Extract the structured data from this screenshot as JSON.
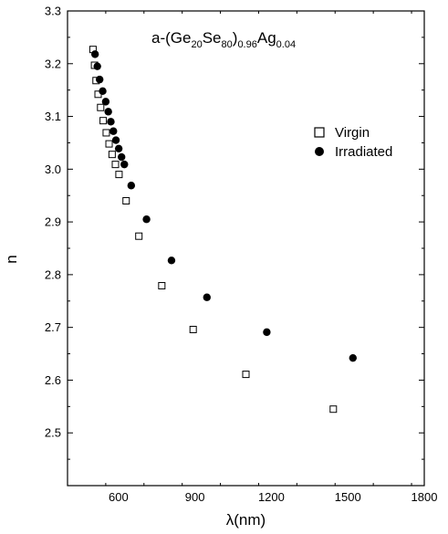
{
  "chart_data": {
    "type": "scatter",
    "xlabel": "λ(nm)",
    "ylabel": "n",
    "xlim": [
      400,
      1800
    ],
    "ylim": [
      2.4,
      3.3
    ],
    "x_ticks": [
      600,
      900,
      1200,
      1500,
      1800
    ],
    "y_ticks": [
      2.5,
      2.6,
      2.7,
      2.8,
      2.9,
      3.0,
      3.1,
      3.2,
      3.3
    ],
    "x_tick_labels": [
      "600",
      "900",
      "1200",
      "1500",
      "1800"
    ],
    "y_tick_labels": [
      "2.5",
      "2.6",
      "2.7",
      "2.8",
      "2.9",
      "3.0",
      "3.1",
      "3.2",
      "3.3"
    ],
    "grid": false,
    "legend_position": "right",
    "annotation": {
      "parts": [
        {
          "text": "a-(Ge",
          "style": "normal"
        },
        {
          "text": "20",
          "style": "sub"
        },
        {
          "text": "Se",
          "style": "normal"
        },
        {
          "text": "80",
          "style": "sub"
        },
        {
          "text": ")",
          "style": "normal"
        },
        {
          "text": "0.96",
          "style": "sub"
        },
        {
          "text": "Ag",
          "style": "normal"
        },
        {
          "text": "0.04",
          "style": "sub"
        }
      ]
    },
    "series": [
      {
        "name": "Virgin",
        "marker": "open-square",
        "color": "#000000",
        "points": [
          [
            500,
            3.227
          ],
          [
            506,
            3.197
          ],
          [
            512,
            3.168
          ],
          [
            520,
            3.142
          ],
          [
            530,
            3.117
          ],
          [
            540,
            3.092
          ],
          [
            552,
            3.069
          ],
          [
            563,
            3.048
          ],
          [
            575,
            3.028
          ],
          [
            588,
            3.009
          ],
          [
            602,
            2.99
          ],
          [
            630,
            2.94
          ],
          [
            680,
            2.873
          ],
          [
            770,
            2.779
          ],
          [
            893,
            2.696
          ],
          [
            1100,
            2.611
          ],
          [
            1443,
            2.545
          ]
        ]
      },
      {
        "name": "Irradiated",
        "marker": "filled-circle",
        "color": "#000000",
        "points": [
          [
            508,
            3.218
          ],
          [
            517,
            3.195
          ],
          [
            526,
            3.17
          ],
          [
            538,
            3.148
          ],
          [
            550,
            3.128
          ],
          [
            560,
            3.109
          ],
          [
            570,
            3.09
          ],
          [
            580,
            3.072
          ],
          [
            590,
            3.055
          ],
          [
            601,
            3.039
          ],
          [
            612,
            3.023
          ],
          [
            623,
            3.009
          ],
          [
            650,
            2.969
          ],
          [
            710,
            2.905
          ],
          [
            808,
            2.827
          ],
          [
            947,
            2.757
          ],
          [
            1182,
            2.691
          ],
          [
            1520,
            2.642
          ]
        ]
      }
    ]
  }
}
